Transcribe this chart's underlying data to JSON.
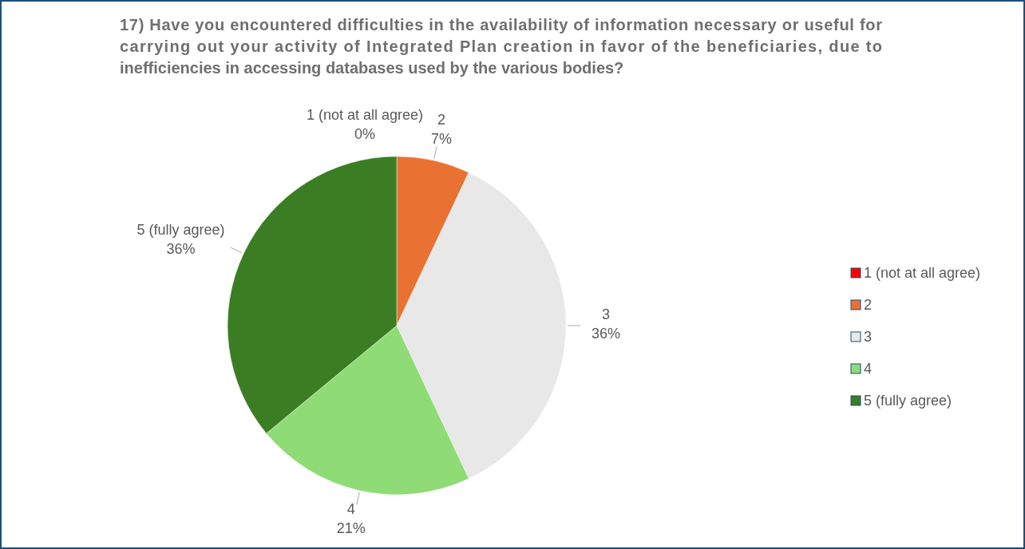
{
  "chart_data": {
    "type": "pie",
    "title": "17) Have you encountered difficulties in the availability of information necessary or useful for carrying out your activity of Integrated Plan creation in favor of the beneficiaries, due to inefficiencies in accessing databases used by the various bodies?",
    "categories": [
      "1 (not at all agree)",
      "2",
      "3",
      "4",
      "5 (fully agree)"
    ],
    "values": [
      0,
      7,
      36,
      21,
      36
    ],
    "colors": [
      "#ff0000",
      "#e97132",
      "#e8e8e8",
      "#8fdb75",
      "#3a7d22"
    ],
    "value_labels": [
      "0%",
      "7%",
      "36%",
      "21%",
      "36%"
    ],
    "legend": "right"
  }
}
